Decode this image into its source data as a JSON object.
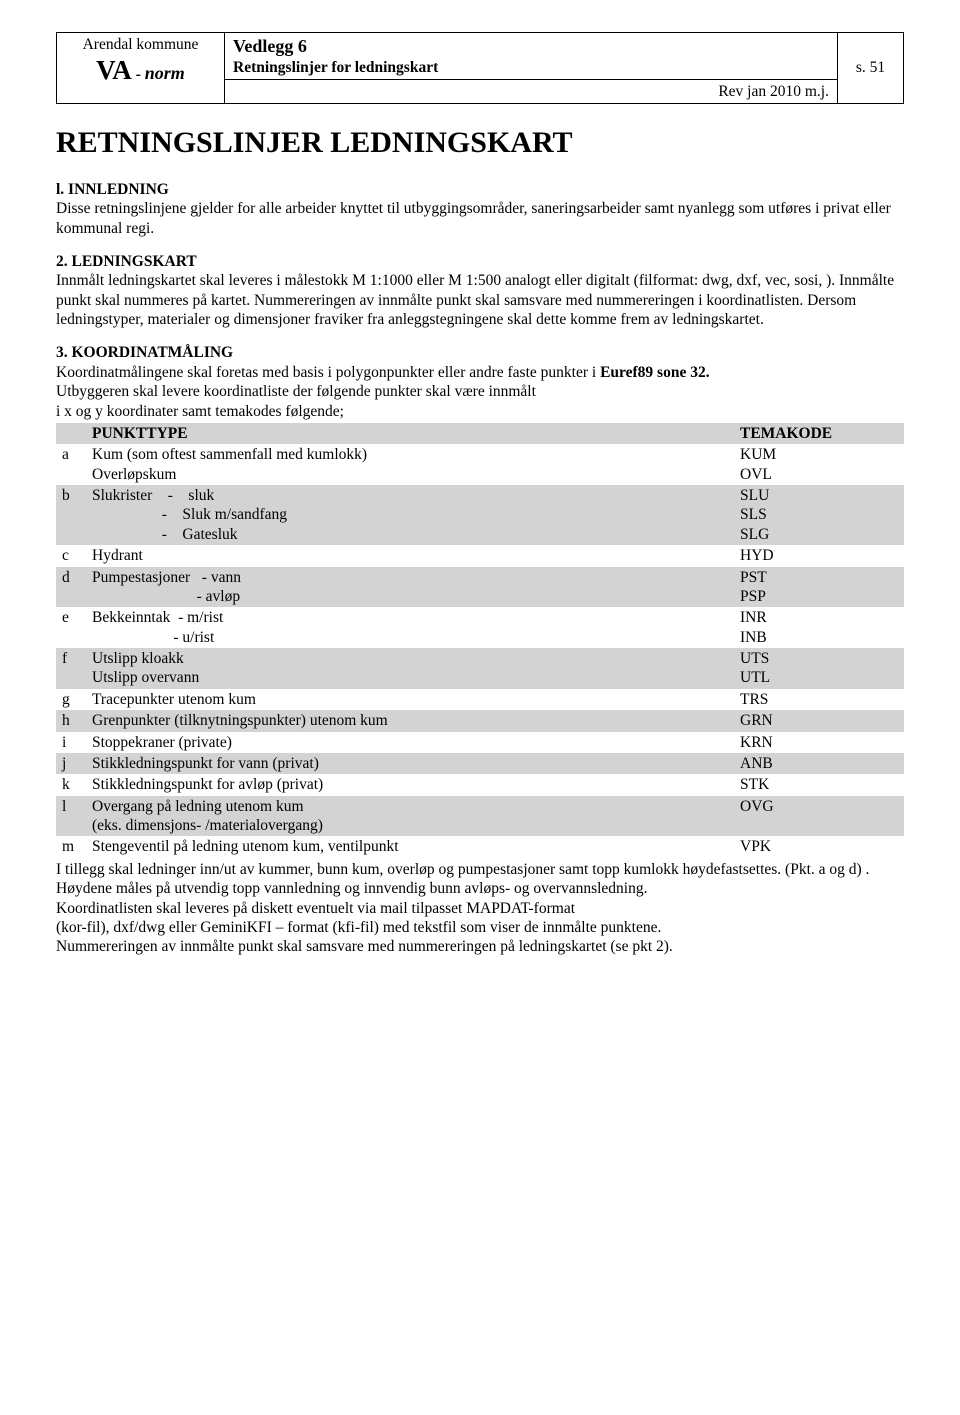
{
  "header": {
    "org": "Arendal kommune",
    "va": "VA",
    "dash": "-",
    "norm": "norm",
    "vedlegg": "Vedlegg 6",
    "subtitle": "Retningslinjer for ledningskart",
    "rev": "Rev jan 2010  m.j.",
    "page": "s. 51"
  },
  "title": "RETNINGSLINJER LEDNINGSKART",
  "s1": {
    "head": "l. INNLEDNING",
    "body": "Disse retningslinjene gjelder for alle arbeider knyttet til utbyggingsområder, saneringsarbeider samt nyanlegg som utføres i privat eller kommunal regi."
  },
  "s2": {
    "head": "2. LEDNINGSKART",
    "body": "Innmålt ledningskartet skal leveres i målestokk M 1:1000 eller M 1:500 analogt eller digitalt (filformat: dwg, dxf, vec, sosi, ). Innmålte punkt skal nummeres på kartet. Nummereringen av innmålte punkt skal samsvare med nummereringen i koordinatlisten. Dersom ledningstyper, materialer og dimensjoner fraviker fra anleggstegningene skal dette komme frem av ledningskartet."
  },
  "s3": {
    "head": "3. KOORDINATMÅLING",
    "line1a": "Koordinatmålingene skal foretas med basis i polygonpunkter eller andre faste punkter i ",
    "line1b": "Euref89 sone 32.",
    "line2": "Utbyggeren skal levere koordinatliste der følgende punkter skal være innmålt",
    "line3": "i x og y koordinater samt temakodes følgende;"
  },
  "table": {
    "h1": "PUNKTTYPE",
    "h2": "TEMAKODE",
    "rows": [
      {
        "l": "a",
        "t": [
          "Kum (som oftest sammenfall med kumlokk)",
          "Overløpskum"
        ],
        "c": [
          "KUM",
          "OVL"
        ],
        "shade": false
      },
      {
        "l": "b",
        "t": [
          "Slukrister    -    sluk",
          "                  -    Sluk m/sandfang",
          "                  -    Gatesluk"
        ],
        "c": [
          "SLU",
          "SLS",
          "SLG"
        ],
        "shade": true
      },
      {
        "l": "c",
        "t": [
          "Hydrant"
        ],
        "c": [
          "HYD"
        ],
        "shade": false
      },
      {
        "l": "d",
        "t": [
          "Pumpestasjoner   - vann",
          "                           - avløp"
        ],
        "c": [
          "PST",
          "PSP"
        ],
        "shade": true
      },
      {
        "l": "e",
        "t": [
          "Bekkeinntak  - m/rist",
          "                     - u/rist"
        ],
        "c": [
          "INR",
          "INB"
        ],
        "shade": false
      },
      {
        "l": "f",
        "t": [
          "Utslipp kloakk",
          "Utslipp overvann"
        ],
        "c": [
          "UTS",
          "UTL"
        ],
        "shade": true
      },
      {
        "l": "g",
        "t": [
          "Tracepunkter utenom kum"
        ],
        "c": [
          "TRS"
        ],
        "shade": false
      },
      {
        "l": "h",
        "t": [
          "Grenpunkter (tilknytningspunkter) utenom kum"
        ],
        "c": [
          "GRN"
        ],
        "shade": true
      },
      {
        "l": "i",
        "t": [
          "Stoppekraner (private)"
        ],
        "c": [
          "KRN"
        ],
        "shade": false
      },
      {
        "l": "j",
        "t": [
          "Stikkledningspunkt for vann (privat)"
        ],
        "c": [
          "ANB"
        ],
        "shade": true
      },
      {
        "l": "k",
        "t": [
          "Stikkledningspunkt for avløp (privat)"
        ],
        "c": [
          "STK"
        ],
        "shade": false
      },
      {
        "l": "l",
        "t": [
          "Overgang på ledning utenom kum",
          "(eks. dimensjons- /materialovergang)"
        ],
        "c": [
          "OVG",
          ""
        ],
        "shade": true
      },
      {
        "l": "m",
        "t": [
          "Stengeventil på ledning utenom kum, ventilpunkt"
        ],
        "c": [
          "VPK"
        ],
        "shade": false
      }
    ]
  },
  "after": {
    "p1": "I tillegg skal ledninger inn/ut av kummer, bunn kum, overløp og pumpestasjoner samt topp kumlokk høydefastsettes. (Pkt. a og d) .",
    "p2": "Høydene måles på utvendig topp vannledning og innvendig bunn avløps- og overvannsledning.",
    "p3": "Koordinatlisten skal leveres på diskett eventuelt via mail tilpasset MAPDAT-format",
    "p4": "(kor-fil), dxf/dwg eller GeminiKFI – format (kfi-fil) med tekstfil som viser de innmålte punktene.",
    "p5": "Nummereringen av innmålte punkt skal samsvare med nummereringen på ledningskartet (se pkt 2)."
  }
}
